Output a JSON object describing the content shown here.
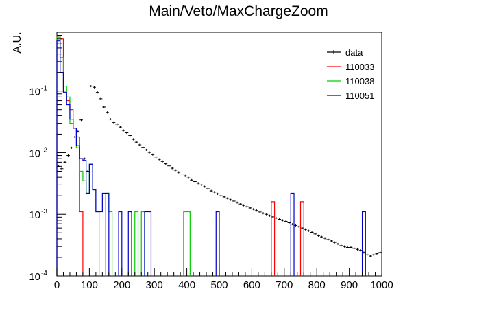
{
  "chart_data": {
    "type": "histogram",
    "title": "Main/Veto/MaxChargeZoom",
    "xlabel": "",
    "ylabel": "A.U.",
    "xlim": [
      0,
      1000
    ],
    "ylim": [
      0.0001,
      0.9
    ],
    "yscale": "log",
    "x_ticks": [
      "0",
      "100",
      "200",
      "300",
      "400",
      "500",
      "600",
      "700",
      "800",
      "900",
      "1000"
    ],
    "y_ticks": [
      {
        "value": 0.0001,
        "base": "10",
        "exp": "-4"
      },
      {
        "value": 0.001,
        "base": "10",
        "exp": "-3"
      },
      {
        "value": 0.01,
        "base": "10",
        "exp": "-2"
      },
      {
        "value": 0.1,
        "base": "10",
        "exp": "-1"
      }
    ],
    "legend_position": "top-right",
    "bin_width": 10,
    "series": [
      {
        "name": "data",
        "color": "#000000",
        "style": "errorbar",
        "x": [
          5,
          15,
          25,
          35,
          45,
          55,
          65,
          75,
          85,
          95,
          105,
          115,
          125,
          135,
          145,
          155,
          165,
          175,
          185,
          195,
          205,
          215,
          225,
          235,
          245,
          255,
          265,
          275,
          285,
          295,
          305,
          315,
          325,
          335,
          345,
          355,
          365,
          375,
          385,
          395,
          405,
          415,
          425,
          435,
          445,
          455,
          465,
          475,
          485,
          495,
          505,
          515,
          525,
          535,
          545,
          555,
          565,
          575,
          585,
          595,
          605,
          615,
          625,
          635,
          645,
          655,
          665,
          675,
          685,
          695,
          705,
          715,
          725,
          735,
          745,
          755,
          765,
          775,
          785,
          795,
          805,
          815,
          825,
          835,
          845,
          855,
          865,
          875,
          885,
          895,
          905,
          915,
          925,
          935,
          945,
          955,
          965,
          975,
          985,
          995
        ],
        "values": [
          0.006,
          0.0055,
          0.007,
          0.009,
          0.012,
          0.018,
          0.022,
          0.034,
          0.008,
          0.005,
          0.12,
          0.115,
          0.095,
          0.075,
          0.055,
          0.045,
          0.035,
          0.031,
          0.029,
          0.026,
          0.023,
          0.021,
          0.019,
          0.0165,
          0.0148,
          0.0134,
          0.0122,
          0.0111,
          0.0101,
          0.0093,
          0.0085,
          0.0078,
          0.0072,
          0.0066,
          0.0061,
          0.0056,
          0.0052,
          0.0048,
          0.0045,
          0.0042,
          0.0039,
          0.0036,
          0.0034,
          0.0032,
          0.003,
          0.0028,
          0.0026,
          0.0024,
          0.0023,
          0.00215,
          0.002,
          0.00192,
          0.00182,
          0.00172,
          0.00164,
          0.00155,
          0.00147,
          0.0014,
          0.00133,
          0.00127,
          0.00121,
          0.00115,
          0.00109,
          0.00104,
          0.001,
          0.00095,
          0.00091,
          0.00087,
          0.00083,
          0.0008,
          0.00077,
          0.00073,
          0.00069,
          0.00066,
          0.00063,
          0.0006,
          0.00057,
          0.00054,
          0.00051,
          0.00048,
          0.00045,
          0.00043,
          0.00041,
          0.00039,
          0.00037,
          0.00035,
          0.00033,
          0.00031,
          0.0003,
          0.00029,
          0.00029,
          0.00028,
          0.00027,
          0.00026,
          0.00024,
          0.00022,
          0.00021,
          0.00022,
          0.00023,
          0.00024
        ]
      },
      {
        "name": "110033",
        "color": "#ff0000",
        "style": "histogram",
        "bins": [
          [
            0,
            0.8
          ],
          [
            10,
            0.7
          ],
          [
            20,
            0.1
          ],
          [
            30,
            0.07
          ],
          [
            40,
            0.05
          ],
          [
            50,
            0.025
          ],
          [
            60,
            0.018
          ],
          [
            70,
            0.0011
          ],
          [
            660,
            0.0016
          ],
          [
            750,
            0.0016
          ]
        ]
      },
      {
        "name": "110038",
        "color": "#00cc00",
        "style": "histogram",
        "bins": [
          [
            0,
            0.75
          ],
          [
            10,
            0.35
          ],
          [
            20,
            0.12
          ],
          [
            30,
            0.08
          ],
          [
            40,
            0.03
          ],
          [
            50,
            0.025
          ],
          [
            60,
            0.012
          ],
          [
            70,
            0.005
          ],
          [
            80,
            0.0035
          ],
          [
            90,
            0.0022
          ],
          [
            100,
            0.0065
          ],
          [
            110,
            0.0025
          ],
          [
            120,
            0.0011
          ],
          [
            150,
            0.0022
          ],
          [
            160,
            0.0011
          ],
          [
            240,
            0.0011
          ],
          [
            260,
            0.0011
          ],
          [
            390,
            0.0011
          ],
          [
            400,
            0.0011
          ]
        ]
      },
      {
        "name": "110051",
        "color": "#0000cc",
        "style": "histogram",
        "bins": [
          [
            0,
            0.65
          ],
          [
            10,
            0.2
          ],
          [
            20,
            0.095
          ],
          [
            30,
            0.06
          ],
          [
            40,
            0.035
          ],
          [
            50,
            0.025
          ],
          [
            60,
            0.013
          ],
          [
            70,
            0.008
          ],
          [
            80,
            0.0075
          ],
          [
            90,
            0.0022
          ],
          [
            100,
            0.0065
          ],
          [
            110,
            0.0025
          ],
          [
            120,
            0.0011
          ],
          [
            130,
            0.0011
          ],
          [
            140,
            0.0022
          ],
          [
            150,
            0.0022
          ],
          [
            190,
            0.0011
          ],
          [
            220,
            0.0011
          ],
          [
            270,
            0.0011
          ],
          [
            280,
            0.0011
          ],
          [
            490,
            0.0011
          ],
          [
            720,
            0.0022
          ],
          [
            940,
            0.0011
          ]
        ]
      }
    ]
  }
}
